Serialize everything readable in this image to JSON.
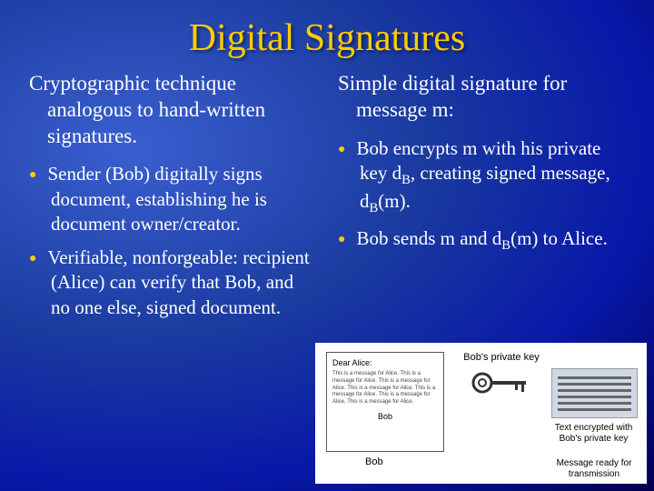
{
  "title": "Digital Signatures",
  "left": {
    "intro": "Cryptographic technique analogous to hand-written signatures.",
    "bullets": [
      "Sender (Bob) digitally signs document, establishing he is document owner/creator.",
      "Verifiable, nonforgeable: recipient (Alice) can verify that Bob, and no one else, signed document."
    ]
  },
  "right": {
    "intro": "Simple digital signature for message m:",
    "bullets_html": [
      "Bob encrypts m with his private key d<sub>B</sub>, creating signed message, d<sub>B</sub>(m).",
      "Bob sends m and d<sub>B</sub>(m) to Alice."
    ]
  },
  "diagram": {
    "greeting": "Dear Alice:",
    "body": "This is a message for Alice. This is a message for Alice. This is a message for Alice. This is a message for Alice. This is a message for Alice. This is a message for Alice. This is a message for Alice.",
    "signature": "Bob",
    "key_label": "Bob's private key",
    "enc_label": "Text encrypted with Bob's private key",
    "ready_label": "Message ready for transmission",
    "bob_label": "Bob"
  },
  "colors": {
    "title": "#ffcc00",
    "bullet": "#ffcc00",
    "text": "#ffffff",
    "bg_gradient": [
      "#3a5fcf",
      "#1a3a9f",
      "#0818a8",
      "#000050"
    ]
  }
}
